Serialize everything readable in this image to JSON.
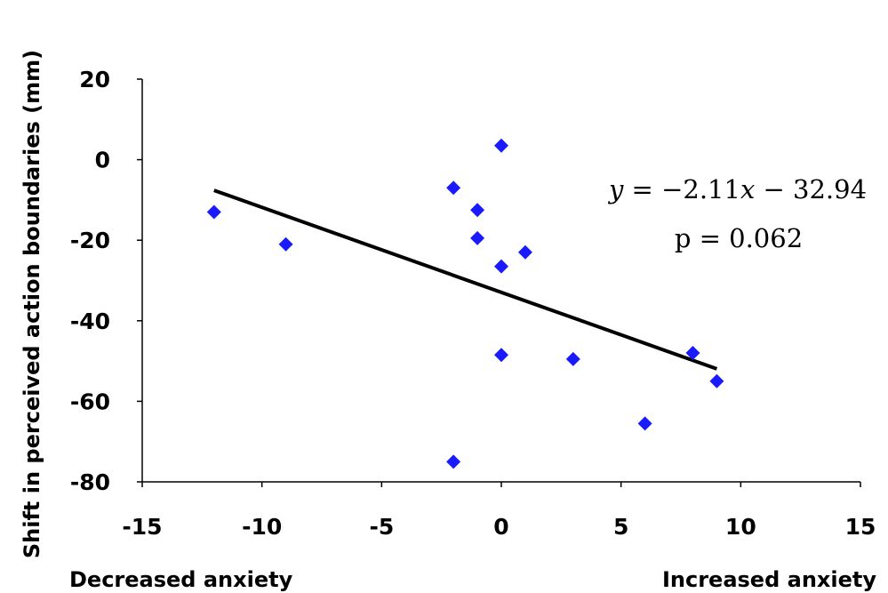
{
  "chart_data": {
    "type": "scatter",
    "title": "",
    "ylabel": "Shift in perceived action boundaries (mm)",
    "xlabel_left": "Decreased anxiety",
    "xlabel_right": "Increased anxiety",
    "xlim": [
      -15,
      15
    ],
    "ylim": [
      -80,
      20
    ],
    "xticks": [
      -15,
      -10,
      -5,
      0,
      5,
      10,
      15
    ],
    "yticks": [
      20,
      0,
      -20,
      -40,
      -60,
      -80
    ],
    "xtick_labels": [
      "-15",
      "-10",
      "-5",
      "0",
      "5",
      "10",
      "15"
    ],
    "ytick_labels": [
      "20",
      "0",
      "-20",
      "-40",
      "-60",
      "-80"
    ],
    "grid": false,
    "series": [
      {
        "marker": "diamond",
        "color": "#1a1aff",
        "points": [
          {
            "x": -12,
            "y": -13
          },
          {
            "x": -9,
            "y": -21
          },
          {
            "x": -2,
            "y": -7
          },
          {
            "x": -2,
            "y": -75
          },
          {
            "x": -1,
            "y": -12.5
          },
          {
            "x": -1,
            "y": -19.5
          },
          {
            "x": 0,
            "y": 3.5
          },
          {
            "x": 0,
            "y": -26.5
          },
          {
            "x": 0,
            "y": -48.5
          },
          {
            "x": 1,
            "y": -23
          },
          {
            "x": 3,
            "y": -49.5
          },
          {
            "x": 6,
            "y": -65.5
          },
          {
            "x": 8,
            "y": -48
          },
          {
            "x": 9,
            "y": -55
          }
        ]
      }
    ],
    "trendline": {
      "color": "#000000",
      "slope": -2.11,
      "intercept": -32.94,
      "x_range": [
        -12,
        9
      ]
    },
    "annotations": {
      "equation_var_y": "y",
      "equation_eq": " = −2.11",
      "equation_var_x": "x",
      "equation_rest": " − 32.94",
      "p_value": "p = 0.062"
    }
  }
}
